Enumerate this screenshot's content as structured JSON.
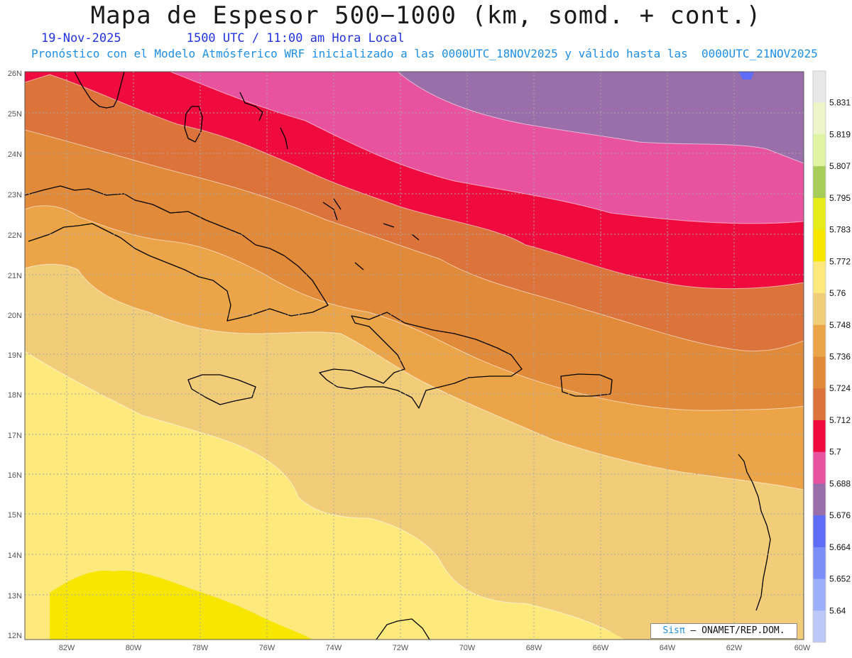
{
  "header": {
    "title": "Mapa de Espesor 500−1000 (km, somd. + cont.)",
    "date": "19-Nov-2025",
    "time_info": "1500 UTC / 11:00 am Hora Local",
    "subtitle": "Pronóstico con el Modelo Atmósferico WRF inicializado a las 0000UTC_18NOV2025 y válido hasta las  0000UTC_21NOV2025"
  },
  "map": {
    "lon_labels": [
      "82W",
      "80W",
      "78W",
      "76W",
      "74W",
      "72W",
      "70W",
      "68W",
      "66W",
      "64W",
      "62W",
      "60W"
    ],
    "lat_labels": [
      "26N",
      "25N",
      "24N",
      "23N",
      "22N",
      "21N",
      "20N",
      "19N",
      "18N",
      "17N",
      "16N",
      "15N",
      "14N",
      "13N",
      "12N"
    ]
  },
  "colorbar": {
    "labels": [
      "5.831",
      "5.819",
      "5.807",
      "5.795",
      "5.783",
      "5.772",
      "5.76",
      "5.748",
      "5.736",
      "5.724",
      "5.712",
      "5.7",
      "5.688",
      "5.676",
      "5.664",
      "5.652",
      "5.64"
    ],
    "colors": [
      "#e8e8e8",
      "#eef5c8",
      "#e0f3a0",
      "#a8cc58",
      "#e6eb1a",
      "#f7e600",
      "#fde97c",
      "#f1cd79",
      "#eba448",
      "#e18a3a",
      "#db733a",
      "#ef0b3e",
      "#e8529f",
      "#9a6ea8",
      "#5f6cf5",
      "#7c8ef7",
      "#9bb0f8",
      "#bcc8f8"
    ]
  },
  "credit": {
    "logo": "Sisπ",
    "text": "– ONAMET/REP.DOM."
  }
}
